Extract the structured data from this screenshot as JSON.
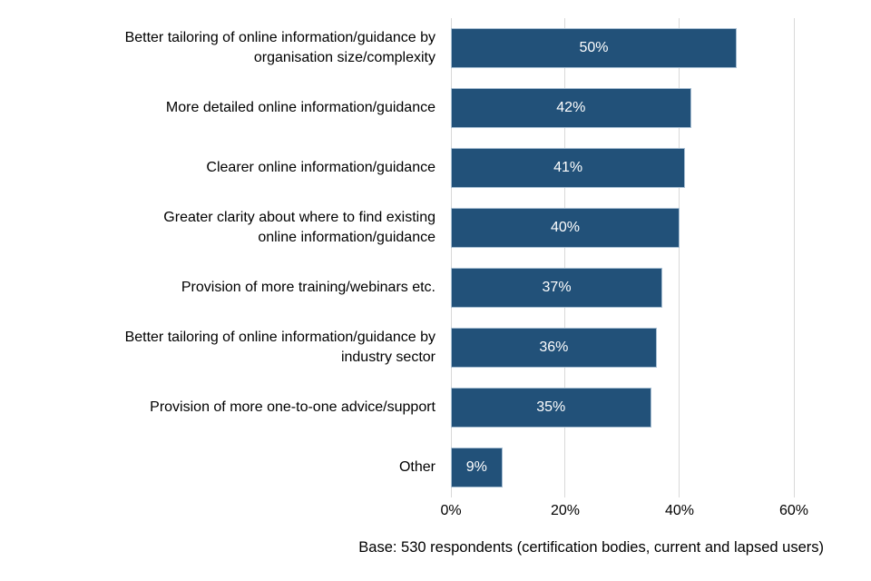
{
  "chart_data": {
    "type": "bar",
    "orientation": "horizontal",
    "title": "",
    "xlabel": "",
    "ylabel": "",
    "categories": [
      "Better tailoring of online information/guidance by\norganisation size/complexity",
      "More detailed online information/guidance",
      "Clearer online information/guidance",
      "Greater clarity about where to find existing\nonline information/guidance",
      "Provision of more training/webinars etc.",
      "Better tailoring of online information/guidance by\nindustry sector",
      "Provision of more one-to-one advice/support",
      "Other"
    ],
    "values": [
      50,
      42,
      41,
      40,
      37,
      36,
      35,
      9
    ],
    "value_labels": [
      "50%",
      "42%",
      "41%",
      "40%",
      "37%",
      "36%",
      "35%",
      "9%"
    ],
    "x_ticks": [
      "0%",
      "20%",
      "40%",
      "60%"
    ],
    "x_tick_values": [
      0,
      20,
      40,
      60
    ],
    "xlim": [
      0,
      60
    ],
    "grid": true,
    "legend": false,
    "bar_color": "#225179",
    "bar_border_color": "#a7bed2",
    "gridline_color": "#d9d9d9",
    "value_label_color": "#ffffff",
    "note": "Base: 530 respondents (certification bodies, current and lapsed users)"
  }
}
